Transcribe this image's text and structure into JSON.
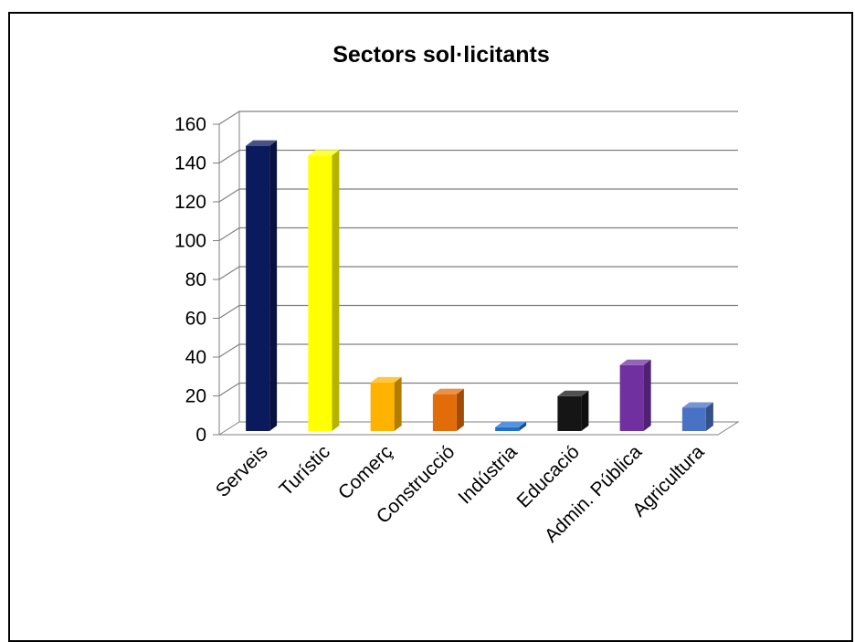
{
  "chart_data": {
    "type": "bar",
    "title": "Sectors sol·licitants",
    "xlabel": "",
    "ylabel": "",
    "categories": [
      "Serveis",
      "Turístic",
      "Comerç",
      "Construcció",
      "Indústria",
      "Educació",
      "Admin. Pública",
      "Agricultura"
    ],
    "values": [
      147,
      142,
      25,
      19,
      2,
      18,
      34,
      12
    ],
    "ylim": [
      0,
      160
    ],
    "yticks": [
      "0",
      "20",
      "40",
      "60",
      "80",
      "100",
      "120",
      "140",
      "160"
    ],
    "grid": true,
    "legend": "none",
    "style": "3d-column",
    "colors": [
      "#0b1a5c",
      "#ffff00",
      "#ffb300",
      "#e36c0a",
      "#1f6fd0",
      "#151515",
      "#7030a0",
      "#4a72c4"
    ]
  }
}
